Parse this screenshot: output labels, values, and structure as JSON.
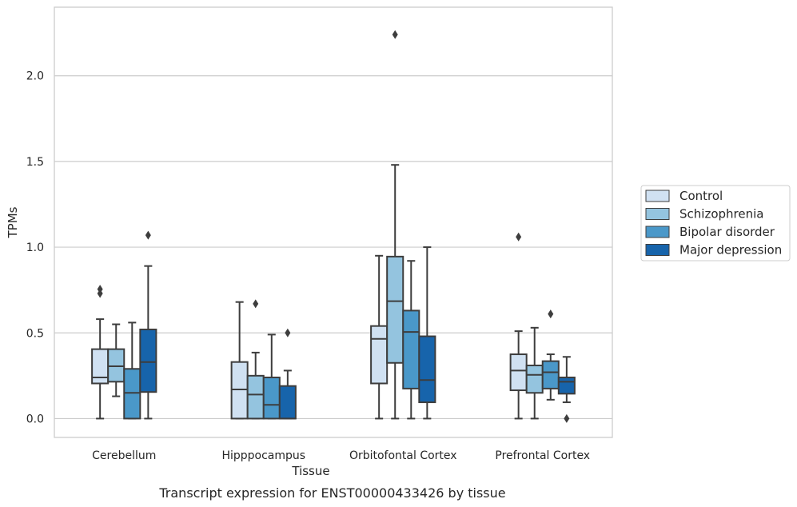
{
  "caption": "Transcript expression for ENST00000433426 by tissue",
  "chart_data": {
    "type": "box",
    "title": "",
    "xlabel": "Tissue",
    "ylabel": "TPMs",
    "ylim": [
      -0.11,
      2.4
    ],
    "yticks": [
      0.0,
      0.5,
      1.0,
      1.5,
      2.0
    ],
    "ytick_labels": [
      "0.0",
      "0.5",
      "1.0",
      "1.5",
      "2.0"
    ],
    "grid": true,
    "legend_position": "right",
    "categories": [
      "Cerebellum",
      "Hipppocampus",
      "Orbitofontal Cortex",
      "Prefrontal Cortex"
    ],
    "series": [
      {
        "name": "Control",
        "color": "#d0e1f2",
        "boxes": [
          {
            "whisker_low": 0.0,
            "q1": 0.205,
            "median": 0.24,
            "q3": 0.405,
            "whisker_high": 0.58,
            "outliers": [
              0.73,
              0.755
            ]
          },
          {
            "whisker_low": 0.0,
            "q1": 0.0,
            "median": 0.17,
            "q3": 0.33,
            "whisker_high": 0.68,
            "outliers": []
          },
          {
            "whisker_low": 0.0,
            "q1": 0.205,
            "median": 0.465,
            "q3": 0.54,
            "whisker_high": 0.95,
            "outliers": []
          },
          {
            "whisker_low": 0.0,
            "q1": 0.165,
            "median": 0.28,
            "q3": 0.375,
            "whisker_high": 0.51,
            "outliers": [
              1.06
            ]
          }
        ]
      },
      {
        "name": "Schizophrenia",
        "color": "#94c4df",
        "boxes": [
          {
            "whisker_low": 0.13,
            "q1": 0.215,
            "median": 0.305,
            "q3": 0.405,
            "whisker_high": 0.55,
            "outliers": []
          },
          {
            "whisker_low": 0.0,
            "q1": 0.0,
            "median": 0.14,
            "q3": 0.25,
            "whisker_high": 0.385,
            "outliers": [
              0.67
            ]
          },
          {
            "whisker_low": 0.0,
            "q1": 0.325,
            "median": 0.685,
            "q3": 0.945,
            "whisker_high": 1.48,
            "outliers": [
              2.24
            ]
          },
          {
            "whisker_low": 0.0,
            "q1": 0.15,
            "median": 0.255,
            "q3": 0.31,
            "whisker_high": 0.53,
            "outliers": []
          }
        ]
      },
      {
        "name": "Bipolar disorder",
        "color": "#4a98c9",
        "boxes": [
          {
            "whisker_low": 0.0,
            "q1": 0.0,
            "median": 0.15,
            "q3": 0.29,
            "whisker_high": 0.56,
            "outliers": []
          },
          {
            "whisker_low": 0.0,
            "q1": 0.0,
            "median": 0.08,
            "q3": 0.24,
            "whisker_high": 0.49,
            "outliers": []
          },
          {
            "whisker_low": 0.0,
            "q1": 0.175,
            "median": 0.505,
            "q3": 0.63,
            "whisker_high": 0.92,
            "outliers": []
          },
          {
            "whisker_low": 0.11,
            "q1": 0.175,
            "median": 0.27,
            "q3": 0.335,
            "whisker_high": 0.375,
            "outliers": [
              0.61
            ]
          }
        ]
      },
      {
        "name": "Major depression",
        "color": "#1764ab",
        "boxes": [
          {
            "whisker_low": 0.0,
            "q1": 0.155,
            "median": 0.33,
            "q3": 0.52,
            "whisker_high": 0.89,
            "outliers": [
              1.07
            ]
          },
          {
            "whisker_low": 0.0,
            "q1": 0.0,
            "median": 0.0,
            "q3": 0.19,
            "whisker_high": 0.28,
            "outliers": [
              0.5
            ]
          },
          {
            "whisker_low": 0.0,
            "q1": 0.095,
            "median": 0.225,
            "q3": 0.48,
            "whisker_high": 1.0,
            "outliers": []
          },
          {
            "whisker_low": 0.095,
            "q1": 0.145,
            "median": 0.215,
            "q3": 0.24,
            "whisker_high": 0.36,
            "outliers": [
              0.0
            ]
          }
        ]
      }
    ]
  }
}
